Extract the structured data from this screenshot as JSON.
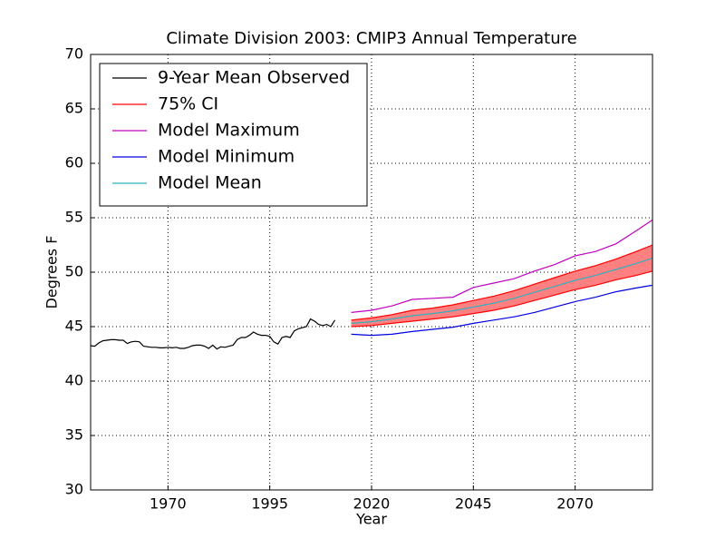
{
  "chart_data": {
    "type": "line",
    "title": "Climate Division 2003: CMIP3 Annual Temperature",
    "xlabel": "Year",
    "ylabel": "Degrees F",
    "xlim": [
      1951,
      2089
    ],
    "ylim": [
      30,
      70
    ],
    "xticks": [
      1970,
      1995,
      2020,
      2045,
      2070
    ],
    "yticks": [
      30,
      35,
      40,
      45,
      50,
      55,
      60,
      65,
      70
    ],
    "grid": true,
    "legend": "upper left",
    "series": [
      {
        "name": "9-Year Mean Observed",
        "color": "#000000",
        "x": [
          1951,
          1952,
          1953,
          1954,
          1955,
          1956,
          1957,
          1958,
          1959,
          1960,
          1961,
          1962,
          1963,
          1964,
          1965,
          1966,
          1967,
          1968,
          1969,
          1970,
          1971,
          1972,
          1973,
          1974,
          1975,
          1976,
          1977,
          1978,
          1979,
          1980,
          1981,
          1982,
          1983,
          1984,
          1985,
          1986,
          1987,
          1988,
          1989,
          1990,
          1991,
          1992,
          1993,
          1994,
          1995,
          1996,
          1997,
          1998,
          1999,
          2000,
          2001,
          2002,
          2003,
          2004,
          2005,
          2006,
          2007,
          2008,
          2009,
          2010,
          2011
        ],
        "values": [
          43.25,
          43.2,
          43.5,
          43.7,
          43.75,
          43.8,
          43.8,
          43.75,
          43.75,
          43.45,
          43.6,
          43.65,
          43.6,
          43.2,
          43.15,
          43.1,
          43.1,
          43.05,
          43.05,
          43.1,
          43.05,
          43.1,
          43.0,
          43.0,
          43.1,
          43.25,
          43.3,
          43.3,
          43.2,
          43.0,
          43.3,
          42.95,
          43.15,
          43.1,
          43.2,
          43.3,
          43.8,
          44.0,
          44.0,
          44.2,
          44.5,
          44.3,
          44.2,
          44.2,
          44.1,
          43.6,
          43.4,
          44.0,
          44.1,
          44.0,
          44.6,
          44.8,
          44.9,
          45.0,
          45.7,
          45.5,
          45.2,
          45.1,
          45.2,
          45.0,
          45.6
        ]
      },
      {
        "name": "75% CI",
        "color": "#ff0000",
        "fill": "#ff8080",
        "x": [
          2015,
          2020,
          2025,
          2030,
          2035,
          2040,
          2045,
          2050,
          2055,
          2060,
          2065,
          2070,
          2075,
          2080,
          2085,
          2089
        ],
        "upper": [
          45.6,
          45.8,
          46.1,
          46.5,
          46.7,
          47.0,
          47.4,
          47.8,
          48.3,
          48.9,
          49.5,
          50.1,
          50.6,
          51.2,
          51.9,
          52.5
        ],
        "lower": [
          45.0,
          45.1,
          45.3,
          45.5,
          45.7,
          45.9,
          46.2,
          46.5,
          46.9,
          47.4,
          47.9,
          48.4,
          48.8,
          49.3,
          49.7,
          50.1
        ]
      },
      {
        "name": "Model Maximum",
        "color": "#c000c0",
        "x": [
          2015,
          2020,
          2025,
          2030,
          2035,
          2040,
          2045,
          2050,
          2055,
          2060,
          2065,
          2070,
          2075,
          2080,
          2085,
          2089
        ],
        "values": [
          46.3,
          46.5,
          46.9,
          47.5,
          47.6,
          47.7,
          48.6,
          49.0,
          49.4,
          50.1,
          50.7,
          51.5,
          51.9,
          52.6,
          53.8,
          54.8
        ]
      },
      {
        "name": "Model Minimum",
        "color": "#0000e0",
        "x": [
          2015,
          2020,
          2025,
          2030,
          2035,
          2040,
          2045,
          2050,
          2055,
          2060,
          2065,
          2070,
          2075,
          2080,
          2085,
          2089
        ],
        "values": [
          44.3,
          44.2,
          44.3,
          44.55,
          44.75,
          44.95,
          45.3,
          45.6,
          45.9,
          46.3,
          46.8,
          47.3,
          47.7,
          48.2,
          48.55,
          48.8
        ]
      },
      {
        "name": "Model Mean",
        "color": "#30b0c0",
        "x": [
          2015,
          2020,
          2025,
          2030,
          2035,
          2040,
          2045,
          2050,
          2055,
          2060,
          2065,
          2070,
          2075,
          2080,
          2085,
          2089
        ],
        "values": [
          45.3,
          45.45,
          45.7,
          46.0,
          46.2,
          46.45,
          46.8,
          47.15,
          47.6,
          48.15,
          48.7,
          49.25,
          49.7,
          50.25,
          50.8,
          51.3
        ]
      }
    ]
  }
}
